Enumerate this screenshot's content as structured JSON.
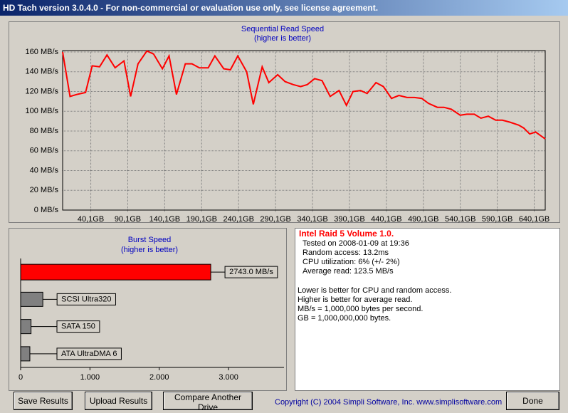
{
  "window": {
    "title": "HD Tach version 3.0.4.0  - For non-commercial or evaluation use only, see license agreement."
  },
  "read_chart": {
    "type": "line",
    "title": "Sequential Read Speed",
    "subtitle": "(higher is better)",
    "x": [
      2,
      12,
      21,
      33,
      42,
      52,
      62,
      73,
      85,
      94,
      104,
      116,
      125,
      137,
      146,
      156,
      168,
      177,
      187,
      199,
      208,
      220,
      229,
      239,
      251,
      260,
      272,
      281,
      293,
      303,
      314,
      324,
      333,
      343,
      353,
      364,
      376,
      386,
      395,
      405,
      414,
      426,
      436,
      447,
      457,
      468,
      478,
      488,
      497,
      509,
      518,
      528,
      540,
      549,
      559,
      568,
      578,
      588,
      597,
      607,
      619,
      626,
      634,
      642,
      655
    ],
    "values": [
      160,
      115,
      117,
      119,
      146,
      145,
      157,
      144,
      151,
      115,
      148,
      161,
      158,
      143,
      156,
      117,
      148,
      148,
      144,
      144,
      156,
      143,
      142,
      156,
      140,
      107,
      145,
      129,
      137,
      130,
      127,
      125,
      127,
      133,
      131,
      115,
      121,
      106,
      120,
      121,
      118,
      129,
      125,
      113,
      116,
      114,
      114,
      113,
      108,
      104,
      104,
      102,
      96,
      97,
      97,
      93,
      95,
      91,
      91,
      89,
      86,
      83,
      77,
      79,
      72
    ],
    "color": "#ff0000",
    "xlim": [
      2,
      655
    ],
    "ylim": [
      0,
      160
    ],
    "grid": true,
    "xticks": [
      {
        "value": 40.1,
        "label": "40,1GB"
      },
      {
        "value": 90.1,
        "label": "90,1GB"
      },
      {
        "value": 140.1,
        "label": "140,1GB"
      },
      {
        "value": 190.1,
        "label": "190,1GB"
      },
      {
        "value": 240.1,
        "label": "240,1GB"
      },
      {
        "value": 290.1,
        "label": "290,1GB"
      },
      {
        "value": 340.1,
        "label": "340,1GB"
      },
      {
        "value": 390.1,
        "label": "390,1GB"
      },
      {
        "value": 440.1,
        "label": "440,1GB"
      },
      {
        "value": 490.1,
        "label": "490,1GB"
      },
      {
        "value": 540.1,
        "label": "540,1GB"
      },
      {
        "value": 590.1,
        "label": "590,1GB"
      },
      {
        "value": 640.1,
        "label": "640,1GB"
      }
    ],
    "yticks": [
      {
        "value": 0,
        "label": "0 MB/s"
      },
      {
        "value": 20,
        "label": "20 MB/s"
      },
      {
        "value": 40,
        "label": "40 MB/s"
      },
      {
        "value": 60,
        "label": "60 MB/s"
      },
      {
        "value": 80,
        "label": "80 MB/s"
      },
      {
        "value": 100,
        "label": "100 MB/s"
      },
      {
        "value": 120,
        "label": "120 MB/s"
      },
      {
        "value": 140,
        "label": "140 MB/s"
      },
      {
        "value": 160,
        "label": "160 MB/s"
      }
    ]
  },
  "burst_chart": {
    "type": "bar",
    "orientation": "horizontal",
    "title": "Burst Speed",
    "subtitle": "(higher is better)",
    "categories": [
      null,
      "SCSI Ultra320",
      "SATA 150",
      "ATA UltraDMA 6"
    ],
    "values": [
      2743.0,
      320,
      150,
      133
    ],
    "value_labels": [
      "2743.0 MB/s",
      null,
      null,
      null
    ],
    "colors": [
      "#ff0000",
      "#808080",
      "#808080",
      "#808080"
    ],
    "xlim": [
      0,
      3800
    ],
    "xticks": [
      0,
      {
        "value": 1000,
        "label": "1.000"
      },
      {
        "value": 2000,
        "label": "2.000"
      },
      {
        "value": 3000,
        "label": "3.000"
      }
    ]
  },
  "info": {
    "title": "Intel Raid 5 Volume 1.0.",
    "details": [
      "Tested on 2008-01-09 at 19:36",
      "Random access: 13.2ms",
      "CPU utilization: 6% (+/- 2%)",
      "Average read: 123.5 MB/s"
    ],
    "notes": [
      "Lower is better for CPU and random access.",
      "Higher is better for average read.",
      "MB/s = 1,000,000 bytes per second.",
      "GB = 1,000,000,000 bytes."
    ]
  },
  "buttons": [
    "Save Results",
    "Upload Results",
    "Compare Another Drive"
  ],
  "copyright": "Copyright (C) 2004 Simpli Software, Inc. www.simplisoftware.com",
  "done": "Done"
}
